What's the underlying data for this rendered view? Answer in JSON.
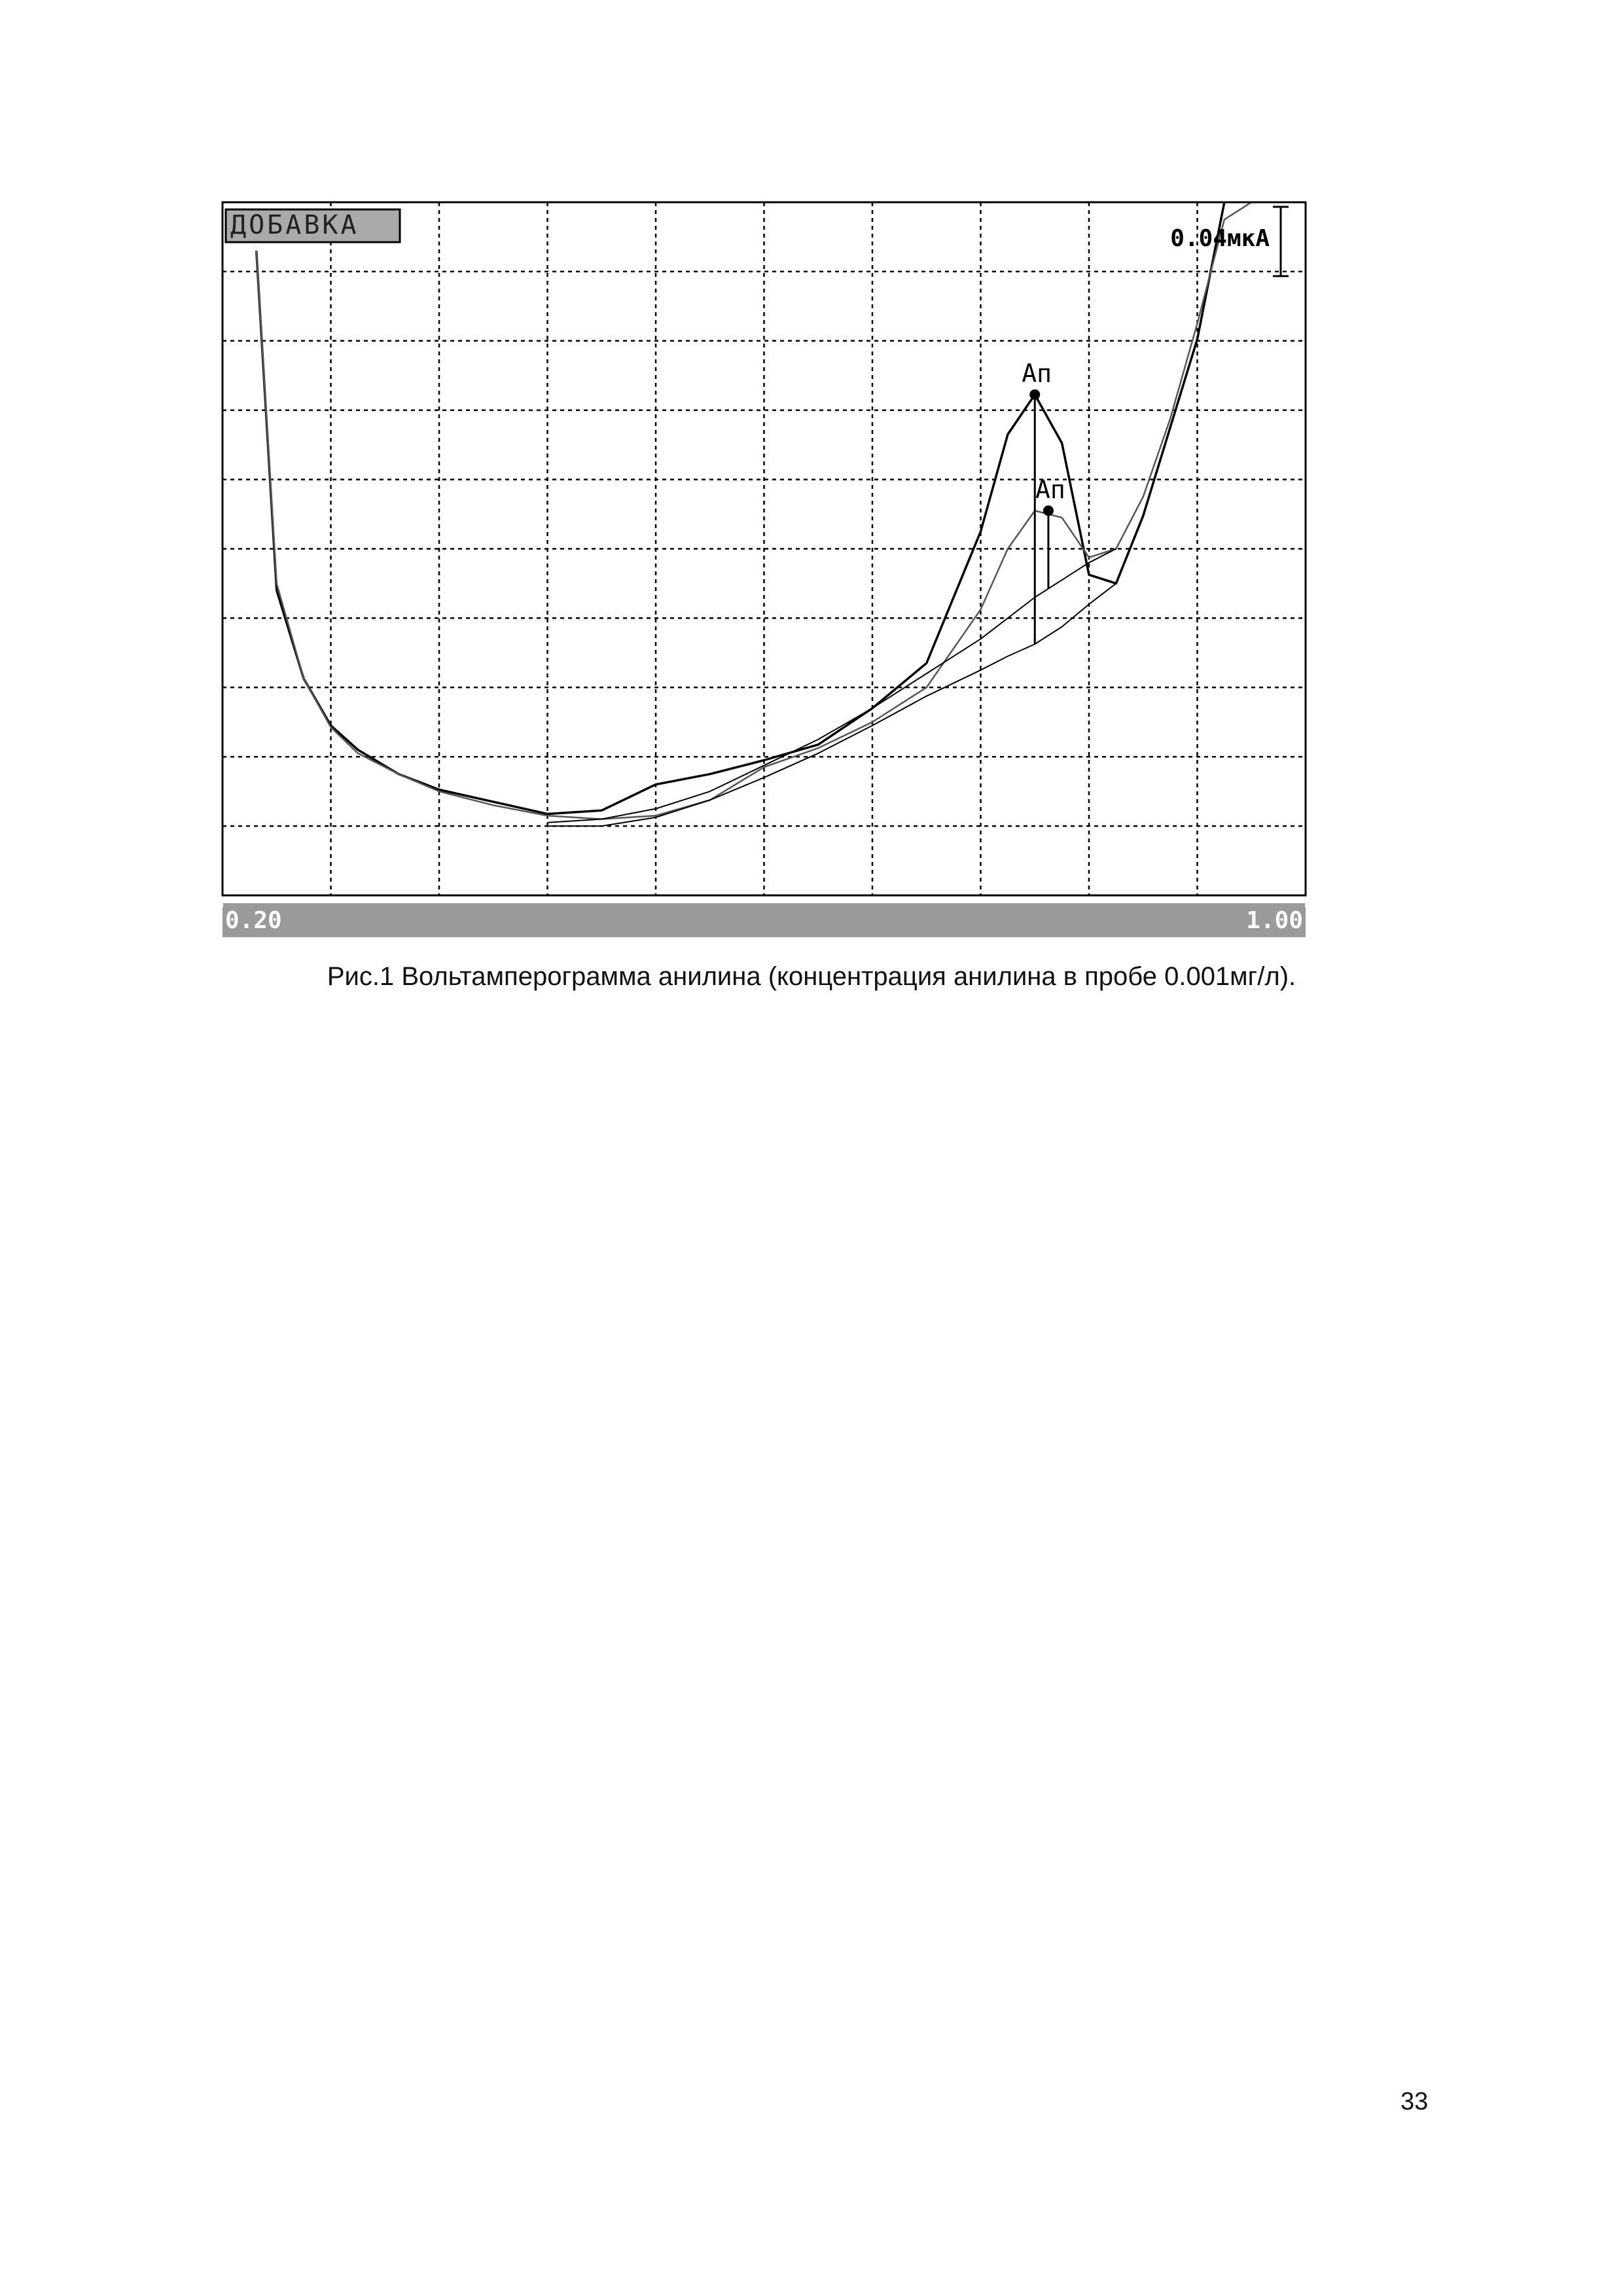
{
  "chart_data": {
    "type": "line",
    "badge": "ДОБАВКА",
    "xlim": [
      0.2,
      1.0
    ],
    "ylim": [
      0,
      0.4
    ],
    "xticks": [
      {
        "value": 0.2,
        "label": "0.20"
      },
      {
        "value": 1.0,
        "label": "1.00"
      }
    ],
    "xgrid": [
      0.28,
      0.36,
      0.44,
      0.52,
      0.6,
      0.68,
      0.76,
      0.84,
      0.92
    ],
    "ygrid": [
      0.04,
      0.08,
      0.12,
      0.16,
      0.2,
      0.24,
      0.28,
      0.32,
      0.36
    ],
    "grid": true,
    "scale_bar": {
      "value": 0.04,
      "label": "0.04мкА"
    },
    "x": [
      0.225,
      0.24,
      0.26,
      0.28,
      0.3,
      0.33,
      0.36,
      0.4,
      0.44,
      0.48,
      0.52,
      0.56,
      0.6,
      0.64,
      0.68,
      0.72,
      0.76,
      0.78,
      0.8,
      0.82,
      0.84,
      0.86,
      0.88,
      0.9,
      0.92,
      0.94,
      0.96
    ],
    "series": [
      {
        "color": "#000000",
        "width": 3.5,
        "values": [
          0.372,
          0.176,
          0.125,
          0.098,
          0.084,
          0.07,
          0.061,
          0.054,
          0.047,
          0.049,
          0.064,
          0.07,
          0.078,
          0.087,
          0.108,
          0.134,
          0.21,
          0.266,
          0.289,
          0.261,
          0.185,
          0.18,
          0.219,
          0.27,
          0.321,
          0.4,
          null
        ]
      },
      {
        "color": "#555555",
        "width": 2.5,
        "values": [
          0.372,
          0.18,
          0.125,
          0.097,
          0.082,
          0.07,
          0.06,
          0.052,
          0.046,
          0.044,
          0.046,
          0.055,
          0.074,
          0.085,
          0.1,
          0.12,
          0.165,
          0.2,
          0.222,
          0.218,
          0.195,
          0.2,
          0.23,
          0.275,
          0.33,
          0.39,
          0.4
        ]
      },
      {
        "color": "#000000",
        "width": 2,
        "values": [
          null,
          null,
          null,
          null,
          null,
          null,
          null,
          null,
          0.04,
          0.04,
          0.045,
          0.055,
          0.068,
          0.082,
          0.098,
          0.115,
          0.13,
          0.138,
          0.145,
          0.155,
          0.168,
          0.18,
          null,
          null,
          null,
          null,
          null
        ]
      },
      {
        "color": "#000000",
        "width": 2,
        "values": [
          null,
          null,
          null,
          null,
          null,
          null,
          null,
          null,
          0.042,
          0.044,
          0.05,
          0.06,
          0.075,
          0.09,
          0.108,
          0.128,
          0.148,
          0.16,
          0.172,
          0.182,
          0.192,
          0.2,
          null,
          null,
          null,
          null,
          null
        ]
      }
    ],
    "peaks": [
      {
        "label": "Ап",
        "x": 0.8,
        "y": 0.289,
        "base": 0.145
      },
      {
        "label": "Ап",
        "x": 0.81,
        "y": 0.222,
        "base": 0.177
      }
    ]
  },
  "caption": "Рис.1 Вольтамперограмма анилина (концентрация анилина в пробе 0.001мг/л).",
  "page_number": "33"
}
